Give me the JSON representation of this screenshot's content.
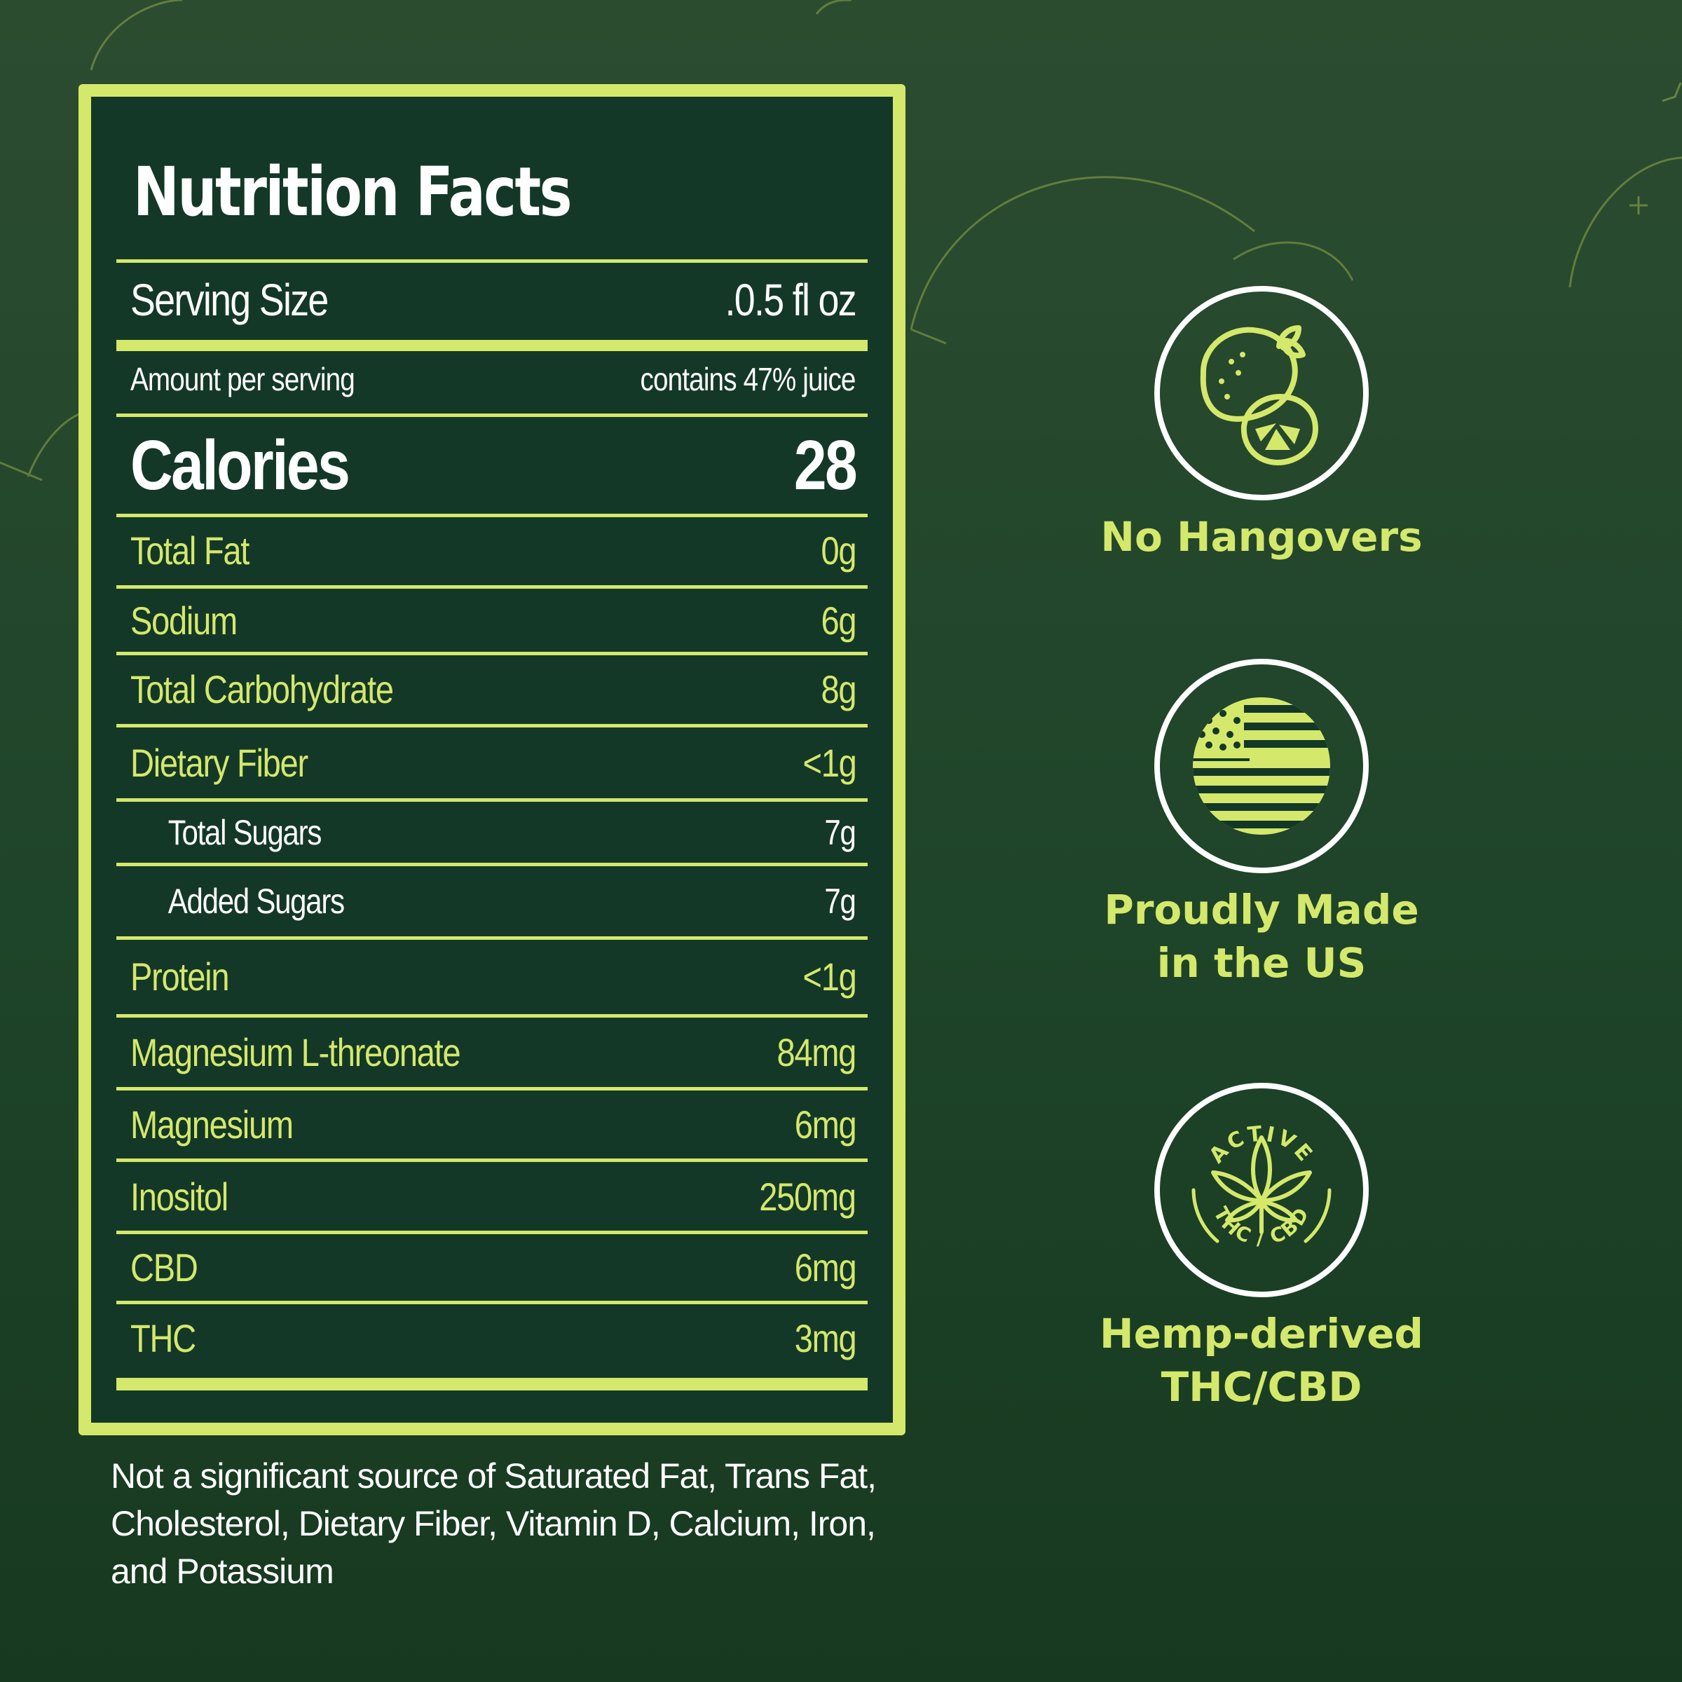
{
  "nutrition": {
    "title": "Nutrition Facts",
    "serving_size_label": "Serving Size",
    "serving_size_value": ".0.5 fl oz",
    "amount_per_serving": "Amount per serving",
    "juice_note": "contains 47% juice",
    "calories_label": "Calories",
    "calories_value": "28",
    "rows": [
      {
        "label": "Total Fat",
        "value": "0g"
      },
      {
        "label": "Sodium",
        "value": "6g"
      },
      {
        "label": "Total Carbohydrate",
        "value": "8g"
      },
      {
        "label": "Dietary Fiber",
        "value": "<1g"
      },
      {
        "label": "Total Sugars",
        "value": "7g"
      },
      {
        "label": "Added Sugars",
        "value": "7g"
      },
      {
        "label": "Protein",
        "value": "<1g"
      },
      {
        "label": "Magnesium L-threonate",
        "value": "84mg"
      },
      {
        "label": "Magnesium",
        "value": "6mg"
      },
      {
        "label": "Inositol",
        "value": "250mg"
      },
      {
        "label": "CBD",
        "value": "6mg"
      },
      {
        "label": "THC",
        "value": "3mg"
      }
    ]
  },
  "footnote": "Not a significant source of Saturated Fat, Trans Fat, Cholesterol, Dietary Fiber, Vitamin D, Calcium, Iron, and Potassium",
  "badges": [
    {
      "icon": "lemon-lime-icon",
      "lines": [
        "No Hangovers"
      ]
    },
    {
      "icon": "us-flag-icon",
      "lines": [
        "Proudly Made",
        "in the US"
      ]
    },
    {
      "icon": "hemp-leaf-icon",
      "lines": [
        "Hemp-derived",
        "THC/CBD"
      ],
      "ring_top": "ACTIVE",
      "ring_bottom": "THC / CBD"
    }
  ],
  "colors": {
    "accent": "#d4e86b",
    "panel_bg": "#143828",
    "background": "#1e4429",
    "text": "#ffffff"
  }
}
